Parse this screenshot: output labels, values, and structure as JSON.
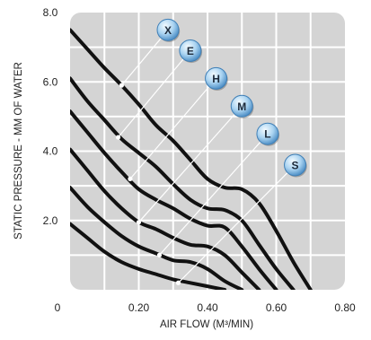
{
  "chart_data": {
    "type": "line",
    "xlabel": "AIR FLOW (M³/MIN)",
    "ylabel": "STATIC PRESSURE - MM OF WATER",
    "xlim": [
      0,
      0.8
    ],
    "ylim": [
      0,
      8.0
    ],
    "x_tick_labels": [
      "0",
      "0.20",
      "0.40",
      "0.60",
      "0.80"
    ],
    "y_tick_labels": [
      "8.0",
      "6.0",
      "4.0",
      "2.0"
    ],
    "x_ticks": [
      0,
      0.2,
      0.4,
      0.6,
      0.8
    ],
    "y_ticks": [
      8,
      6,
      4,
      2
    ],
    "grid": true,
    "legend": "callouts",
    "series_color": "#111111",
    "plot_background": "#d4d4d4",
    "callout_color": "#6fb0e0",
    "series": [
      {
        "name": "X",
        "label_at": [
          0.285,
          7.5
        ],
        "anchor": [
          0.15,
          5.9
        ],
        "x": [
          0.0,
          0.05,
          0.1,
          0.15,
          0.2,
          0.25,
          0.3,
          0.35,
          0.4,
          0.45,
          0.5,
          0.55,
          0.6,
          0.65,
          0.7
        ],
        "y": [
          7.5,
          6.95,
          6.4,
          5.9,
          5.35,
          4.75,
          4.3,
          3.75,
          3.2,
          2.95,
          2.9,
          2.5,
          1.7,
          0.8,
          0.0
        ]
      },
      {
        "name": "E",
        "label_at": [
          0.35,
          6.9
        ],
        "anchor": [
          0.14,
          4.4
        ],
        "x": [
          0.0,
          0.05,
          0.1,
          0.15,
          0.2,
          0.25,
          0.3,
          0.35,
          0.4,
          0.45,
          0.5,
          0.55,
          0.6,
          0.65
        ],
        "y": [
          6.1,
          5.45,
          4.9,
          4.35,
          3.95,
          3.55,
          3.05,
          2.6,
          2.35,
          2.3,
          2.0,
          1.3,
          0.6,
          0.0
        ]
      },
      {
        "name": "H",
        "label_at": [
          0.425,
          6.1
        ],
        "anchor": [
          0.175,
          3.2
        ],
        "x": [
          0.0,
          0.05,
          0.1,
          0.15,
          0.2,
          0.25,
          0.3,
          0.35,
          0.4,
          0.45,
          0.5,
          0.55,
          0.6
        ],
        "y": [
          5.15,
          4.55,
          3.95,
          3.4,
          2.9,
          2.6,
          2.35,
          2.05,
          1.85,
          1.8,
          1.25,
          0.6,
          0.0
        ]
      },
      {
        "name": "M",
        "label_at": [
          0.5,
          5.3
        ],
        "anchor": [
          0.2,
          1.95
        ],
        "x": [
          0.0,
          0.05,
          0.1,
          0.15,
          0.2,
          0.25,
          0.3,
          0.35,
          0.4,
          0.45,
          0.5,
          0.55
        ],
        "y": [
          4.05,
          3.45,
          2.85,
          2.35,
          1.95,
          1.75,
          1.5,
          1.3,
          1.25,
          1.0,
          0.5,
          0.0
        ]
      },
      {
        "name": "L",
        "label_at": [
          0.575,
          4.5
        ],
        "anchor": [
          0.26,
          1.0
        ],
        "x": [
          0.0,
          0.05,
          0.1,
          0.15,
          0.2,
          0.25,
          0.3,
          0.35,
          0.4,
          0.45,
          0.5
        ],
        "y": [
          2.95,
          2.4,
          1.95,
          1.55,
          1.25,
          1.05,
          0.85,
          0.8,
          0.6,
          0.25,
          0.0
        ]
      },
      {
        "name": "S",
        "label_at": [
          0.655,
          3.6
        ],
        "anchor": [
          0.315,
          0.2
        ],
        "x": [
          0.0,
          0.05,
          0.1,
          0.15,
          0.2,
          0.25,
          0.3,
          0.35,
          0.4,
          0.45
        ],
        "y": [
          1.9,
          1.5,
          1.1,
          0.8,
          0.6,
          0.45,
          0.3,
          0.2,
          0.1,
          0.0
        ]
      }
    ]
  }
}
